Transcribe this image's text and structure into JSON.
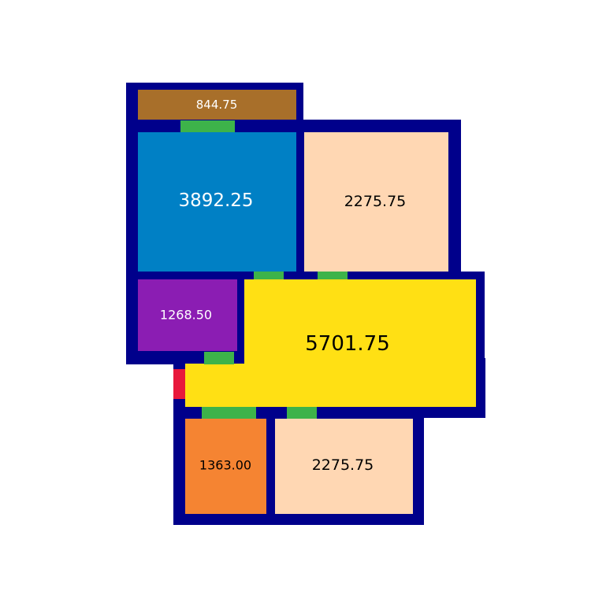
{
  "colors": {
    "wall": "#00008b",
    "door": "#3db34a",
    "entrance": "#e8193c",
    "background": "#ffffff"
  },
  "rooms": [
    {
      "id": "room-top-strip",
      "area": "844.75",
      "fill": "#a86f2a",
      "text_color": "#ffffff"
    },
    {
      "id": "room-blue",
      "area": "3892.25",
      "fill": "#0080c5",
      "text_color": "#ffffff"
    },
    {
      "id": "room-peach-upper",
      "area": "2275.75",
      "fill": "#ffd7b3",
      "text_color": "#000000"
    },
    {
      "id": "room-purple",
      "area": "1268.50",
      "fill": "#8b1db3",
      "text_color": "#ffffff"
    },
    {
      "id": "room-yellow",
      "area": "5701.75",
      "fill": "#ffe014",
      "text_color": "#000000"
    },
    {
      "id": "room-orange",
      "area": "1363.00",
      "fill": "#f58432",
      "text_color": "#000000"
    },
    {
      "id": "room-peach-lower",
      "area": "2275.75",
      "fill": "#ffd7b3",
      "text_color": "#000000"
    }
  ]
}
